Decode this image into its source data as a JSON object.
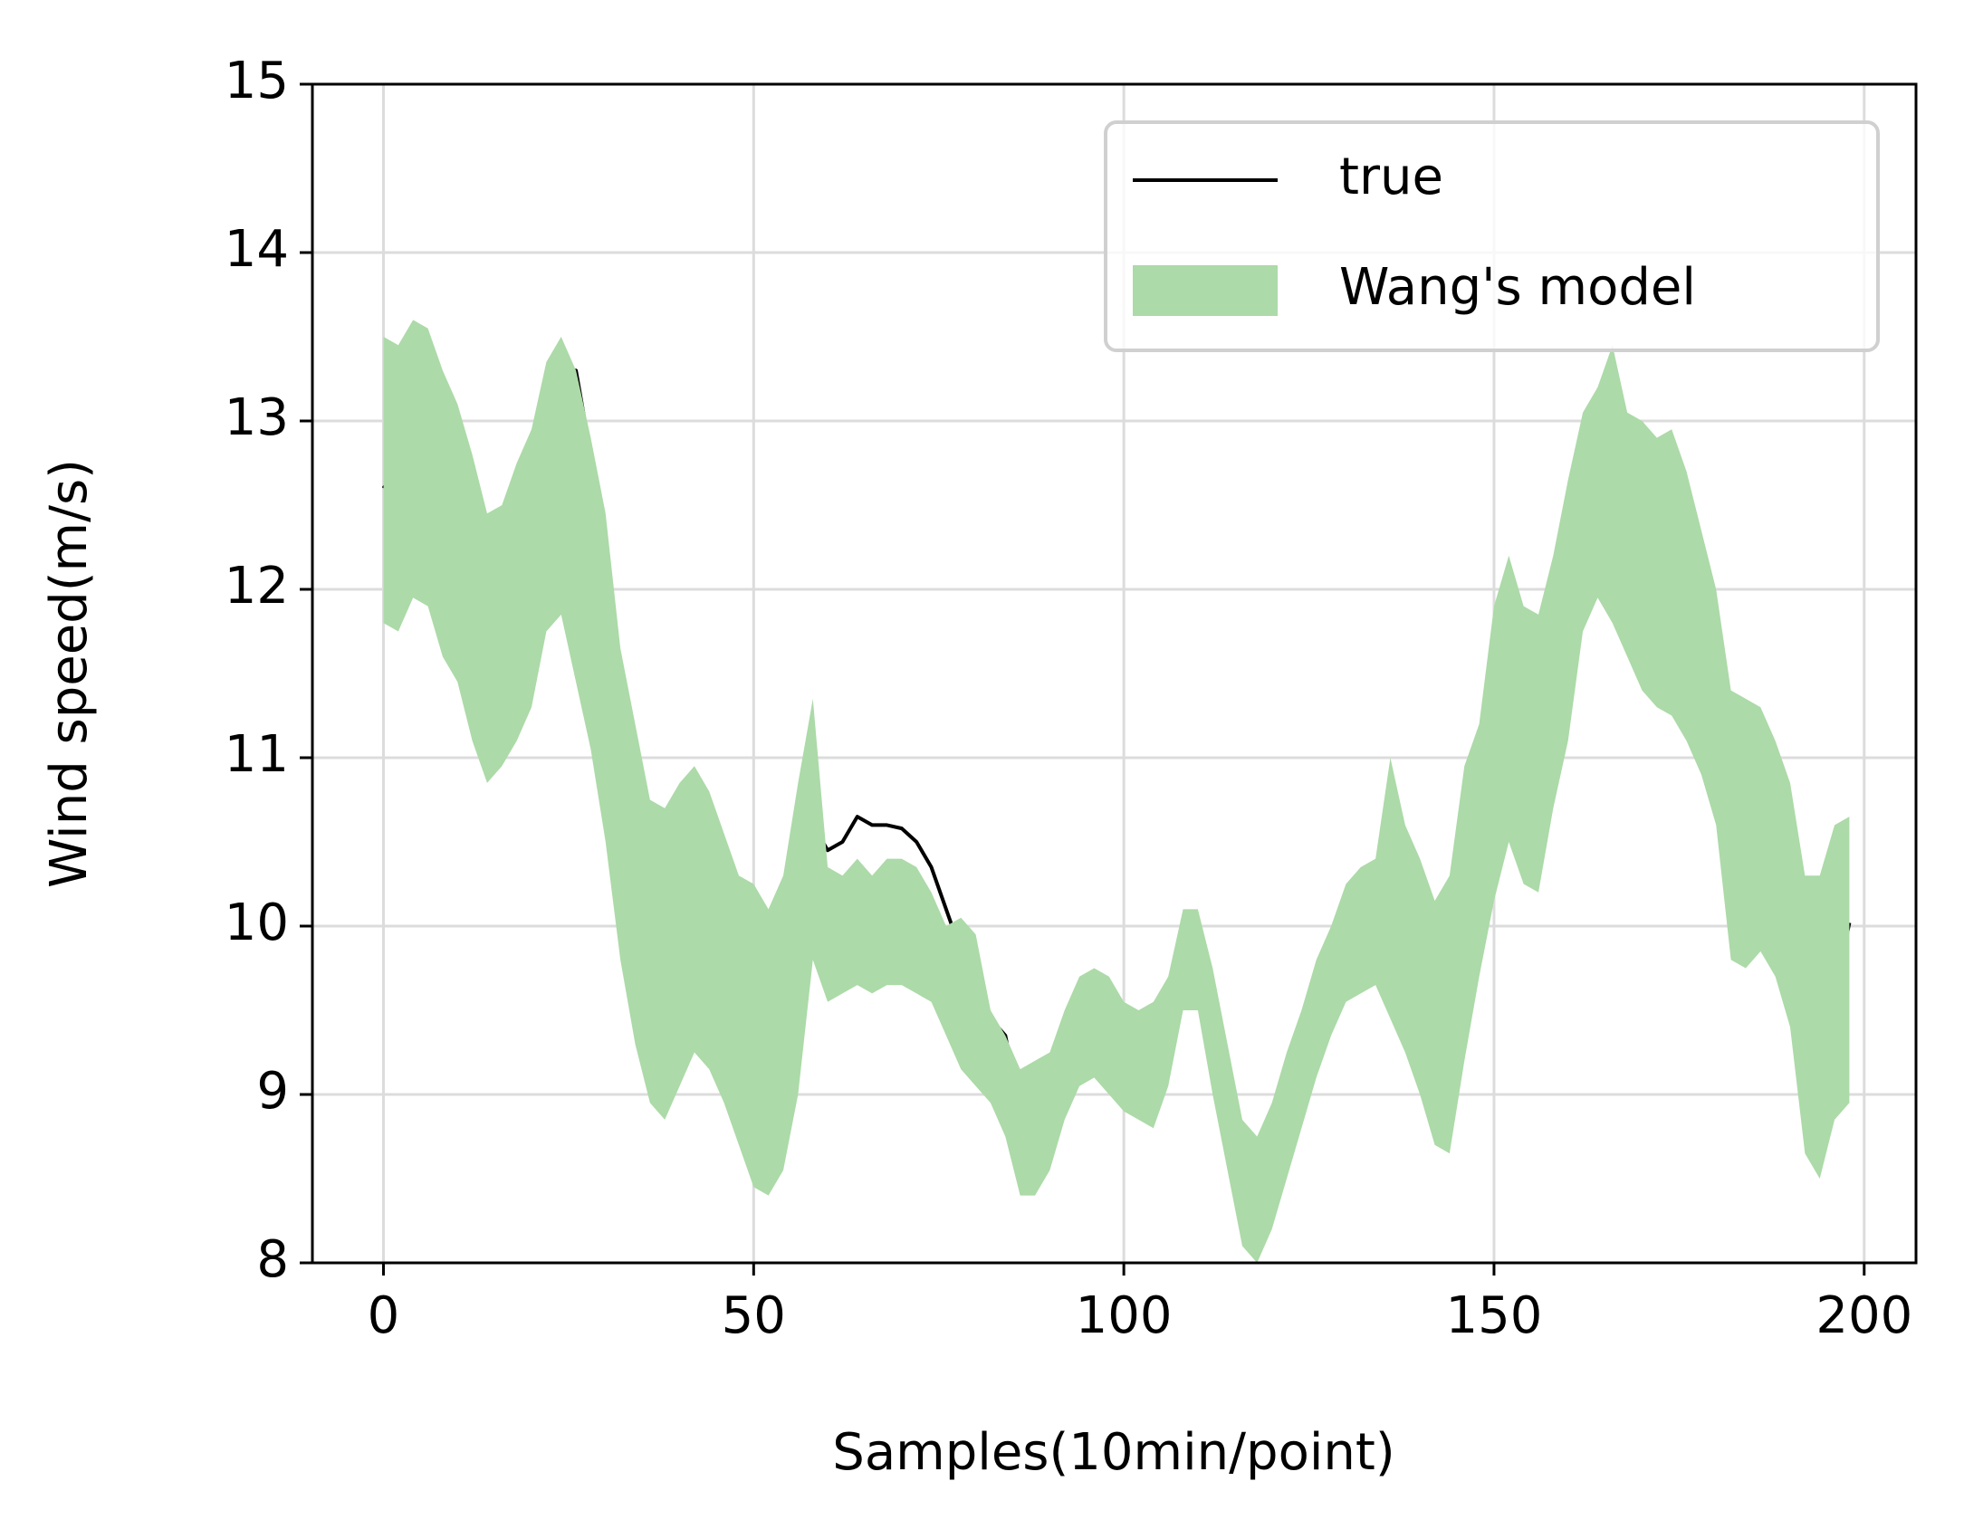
{
  "chart_data": {
    "type": "line",
    "xlabel": "Samples(10min/point)",
    "ylabel": "Wind speed(m/s)",
    "x": [
      0,
      2,
      4,
      6,
      8,
      10,
      12,
      14,
      16,
      18,
      20,
      22,
      24,
      26,
      28,
      30,
      32,
      34,
      36,
      38,
      40,
      42,
      44,
      46,
      48,
      50,
      52,
      54,
      56,
      58,
      60,
      62,
      64,
      66,
      68,
      70,
      72,
      74,
      76,
      78,
      80,
      82,
      84,
      86,
      88,
      90,
      92,
      94,
      96,
      98,
      100,
      102,
      104,
      106,
      108,
      110,
      112,
      114,
      116,
      118,
      120,
      122,
      124,
      126,
      128,
      130,
      132,
      134,
      136,
      138,
      140,
      142,
      144,
      146,
      148,
      150,
      152,
      154,
      156,
      158,
      160,
      162,
      164,
      166,
      168,
      170,
      172,
      174,
      176,
      178,
      180,
      182,
      184,
      186,
      188,
      190,
      192,
      194,
      196,
      198
    ],
    "series": [
      {
        "name": "true",
        "color": "#000000",
        "values": [
          12.6,
          12.73,
          12.8,
          12.75,
          12.63,
          12.41,
          12.25,
          12.15,
          12.25,
          12.5,
          12.7,
          12.95,
          13.05,
          13.3,
          12.8,
          12.25,
          11.55,
          11.1,
          10.6,
          10.45,
          10.5,
          10.45,
          10.1,
          9.95,
          9.92,
          9.7,
          9.45,
          9.5,
          10.3,
          10.6,
          10.45,
          10.5,
          10.65,
          10.6,
          10.6,
          10.58,
          10.5,
          10.35,
          10.1,
          9.85,
          9.7,
          9.45,
          9.35,
          8.9,
          8.7,
          8.75,
          9.1,
          9.25,
          9.15,
          9.15,
          9.25,
          9.2,
          9.2,
          9.4,
          9.7,
          9.75,
          9.35,
          8.9,
          8.4,
          8.35,
          8.6,
          8.95,
          9.1,
          9.45,
          9.75,
          9.9,
          10.05,
          10.05,
          9.9,
          9.7,
          9.6,
          9.3,
          9.3,
          9.7,
          10.25,
          10.8,
          11.05,
          11.0,
          11.1,
          11.3,
          11.7,
          12.25,
          12.55,
          12.7,
          12.4,
          12.35,
          12.5,
          12.2,
          12.35,
          12.15,
          11.9,
          10.9,
          10.6,
          11.05,
          10.75,
          10.55,
          10.15,
          9.5,
          9.6,
          10.02
        ]
      },
      {
        "name": "Wang's model",
        "color": "#acdaa8",
        "lower": [
          11.8,
          11.75,
          11.95,
          11.9,
          11.6,
          11.45,
          11.1,
          10.85,
          10.95,
          11.1,
          11.3,
          11.75,
          11.85,
          11.45,
          11.05,
          10.5,
          9.8,
          9.3,
          8.95,
          8.85,
          9.05,
          9.25,
          9.15,
          8.95,
          8.7,
          8.45,
          8.4,
          8.55,
          9.0,
          9.8,
          9.55,
          9.6,
          9.65,
          9.6,
          9.65,
          9.65,
          9.6,
          9.55,
          9.35,
          9.15,
          9.05,
          8.95,
          8.75,
          8.4,
          8.4,
          8.55,
          8.85,
          9.05,
          9.1,
          9.0,
          8.9,
          8.85,
          8.8,
          9.05,
          9.5,
          9.5,
          9.0,
          8.55,
          8.1,
          8.0,
          8.2,
          8.5,
          8.8,
          9.1,
          9.35,
          9.55,
          9.6,
          9.65,
          9.45,
          9.25,
          9.0,
          8.7,
          8.65,
          9.2,
          9.7,
          10.15,
          10.5,
          10.25,
          10.2,
          10.7,
          11.1,
          11.75,
          11.95,
          11.8,
          11.6,
          11.4,
          11.3,
          11.25,
          11.1,
          10.9,
          10.6,
          9.8,
          9.75,
          9.85,
          9.7,
          9.4,
          8.65,
          8.5,
          8.85,
          8.95
        ],
        "upper": [
          13.5,
          13.45,
          13.6,
          13.55,
          13.3,
          13.1,
          12.8,
          12.45,
          12.5,
          12.75,
          12.95,
          13.35,
          13.5,
          13.3,
          12.9,
          12.45,
          11.65,
          11.2,
          10.75,
          10.7,
          10.85,
          10.95,
          10.8,
          10.55,
          10.3,
          10.25,
          10.1,
          10.3,
          10.85,
          11.35,
          10.35,
          10.3,
          10.4,
          10.3,
          10.4,
          10.4,
          10.35,
          10.2,
          10.0,
          10.05,
          9.95,
          9.5,
          9.35,
          9.15,
          9.2,
          9.25,
          9.5,
          9.7,
          9.75,
          9.7,
          9.55,
          9.5,
          9.55,
          9.7,
          10.1,
          10.1,
          9.75,
          9.3,
          8.85,
          8.75,
          8.95,
          9.25,
          9.5,
          9.8,
          10.0,
          10.25,
          10.35,
          10.4,
          11.0,
          10.6,
          10.4,
          10.15,
          10.3,
          10.95,
          11.2,
          11.9,
          12.2,
          11.9,
          11.85,
          12.2,
          12.65,
          13.05,
          13.2,
          13.45,
          13.05,
          13.0,
          12.9,
          12.95,
          12.7,
          12.35,
          12.0,
          11.4,
          11.35,
          11.3,
          11.1,
          10.85,
          10.3,
          10.3,
          10.6,
          10.65
        ]
      }
    ],
    "xlim": [
      -9.6,
      207
    ],
    "ylim": [
      8,
      15
    ],
    "xticks": [
      0,
      50,
      100,
      150,
      200
    ],
    "yticks": [
      8,
      9,
      10,
      11,
      12,
      13,
      14,
      15
    ],
    "grid": true,
    "legend": "upper right"
  }
}
